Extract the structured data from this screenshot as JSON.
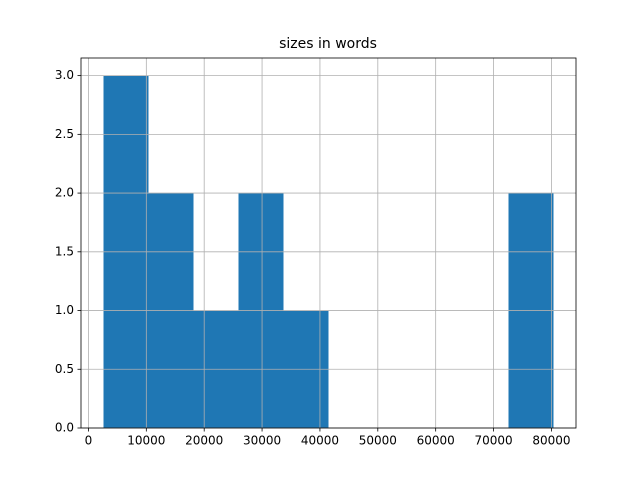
{
  "chart_data": {
    "type": "histogram",
    "title": "sizes in words",
    "bins": [
      2600,
      10376,
      18152,
      25928,
      33704,
      41480,
      49256,
      57032,
      64808,
      72584,
      80360
    ],
    "values": [
      3,
      2,
      1,
      2,
      1,
      0,
      0,
      0,
      0,
      2
    ],
    "color": "#1f77b4",
    "xlim": [
      -1288,
      84248
    ],
    "xticks": [
      0,
      10000,
      20000,
      30000,
      40000,
      50000,
      60000,
      70000,
      80000
    ],
    "ylim": [
      0,
      3.15
    ],
    "yticks": [
      {
        "value": 0,
        "label": "0.0"
      },
      {
        "value": 0.5,
        "label": "0.5"
      },
      {
        "value": 1,
        "label": "1.0"
      },
      {
        "value": 1.5,
        "label": "1.5"
      },
      {
        "value": 2,
        "label": "2.0"
      },
      {
        "value": 2.5,
        "label": "2.5"
      },
      {
        "value": 3,
        "label": "3.0"
      }
    ],
    "grid": true
  }
}
